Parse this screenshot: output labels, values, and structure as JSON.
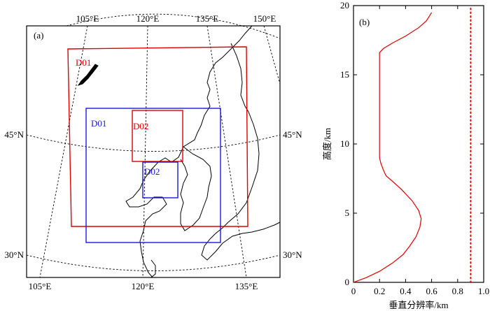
{
  "panel_a": {
    "label": "(a)",
    "top_lon_labels": [
      "105°E",
      "120°E",
      "135°E",
      "150°E"
    ],
    "bottom_lon_labels": [
      "105°E",
      "120°E",
      "135°E"
    ],
    "lat_labels": [
      "45°N",
      "30°N"
    ],
    "domains": [
      {
        "label": "D01",
        "color": "#e00000"
      },
      {
        "label": "D01",
        "color": "#1a1ad6"
      },
      {
        "label": "D02",
        "color": "#e00000"
      },
      {
        "label": "D02",
        "color": "#1a1ad6"
      }
    ]
  },
  "chart_data": {
    "type": "line",
    "panel_label": "(b)",
    "xlabel": "垂直分辨率/km",
    "ylabel": "高度/km",
    "xlim": [
      0,
      1.0
    ],
    "ylim": [
      0,
      20
    ],
    "xticks": [
      "0",
      "0.2",
      "0.4",
      "0.6",
      "0.8",
      "1.0"
    ],
    "yticks": [
      "0",
      "5",
      "10",
      "15",
      "20"
    ],
    "series": [
      {
        "style": "solid",
        "color": "#e00000",
        "points": [
          [
            0.0,
            0.0
          ],
          [
            0.1,
            0.35
          ],
          [
            0.2,
            0.8
          ],
          [
            0.3,
            1.4
          ],
          [
            0.38,
            2.0
          ],
          [
            0.43,
            2.6
          ],
          [
            0.48,
            3.3
          ],
          [
            0.51,
            4.0
          ],
          [
            0.52,
            4.6
          ],
          [
            0.5,
            5.2
          ],
          [
            0.45,
            5.9
          ],
          [
            0.37,
            6.7
          ],
          [
            0.3,
            7.3
          ],
          [
            0.25,
            7.7
          ],
          [
            0.23,
            8.1
          ],
          [
            0.21,
            8.6
          ],
          [
            0.2,
            9.0
          ],
          [
            0.2,
            10.0
          ],
          [
            0.2,
            12.0
          ],
          [
            0.2,
            14.0
          ],
          [
            0.2,
            16.0
          ],
          [
            0.2,
            16.6
          ],
          [
            0.23,
            16.9
          ],
          [
            0.3,
            17.3
          ],
          [
            0.4,
            17.8
          ],
          [
            0.5,
            18.4
          ],
          [
            0.56,
            18.9
          ],
          [
            0.6,
            19.5
          ]
        ]
      },
      {
        "style": "dotted",
        "color": "#e00000",
        "points": [
          [
            0.9,
            0
          ],
          [
            0.9,
            20
          ]
        ]
      }
    ]
  }
}
